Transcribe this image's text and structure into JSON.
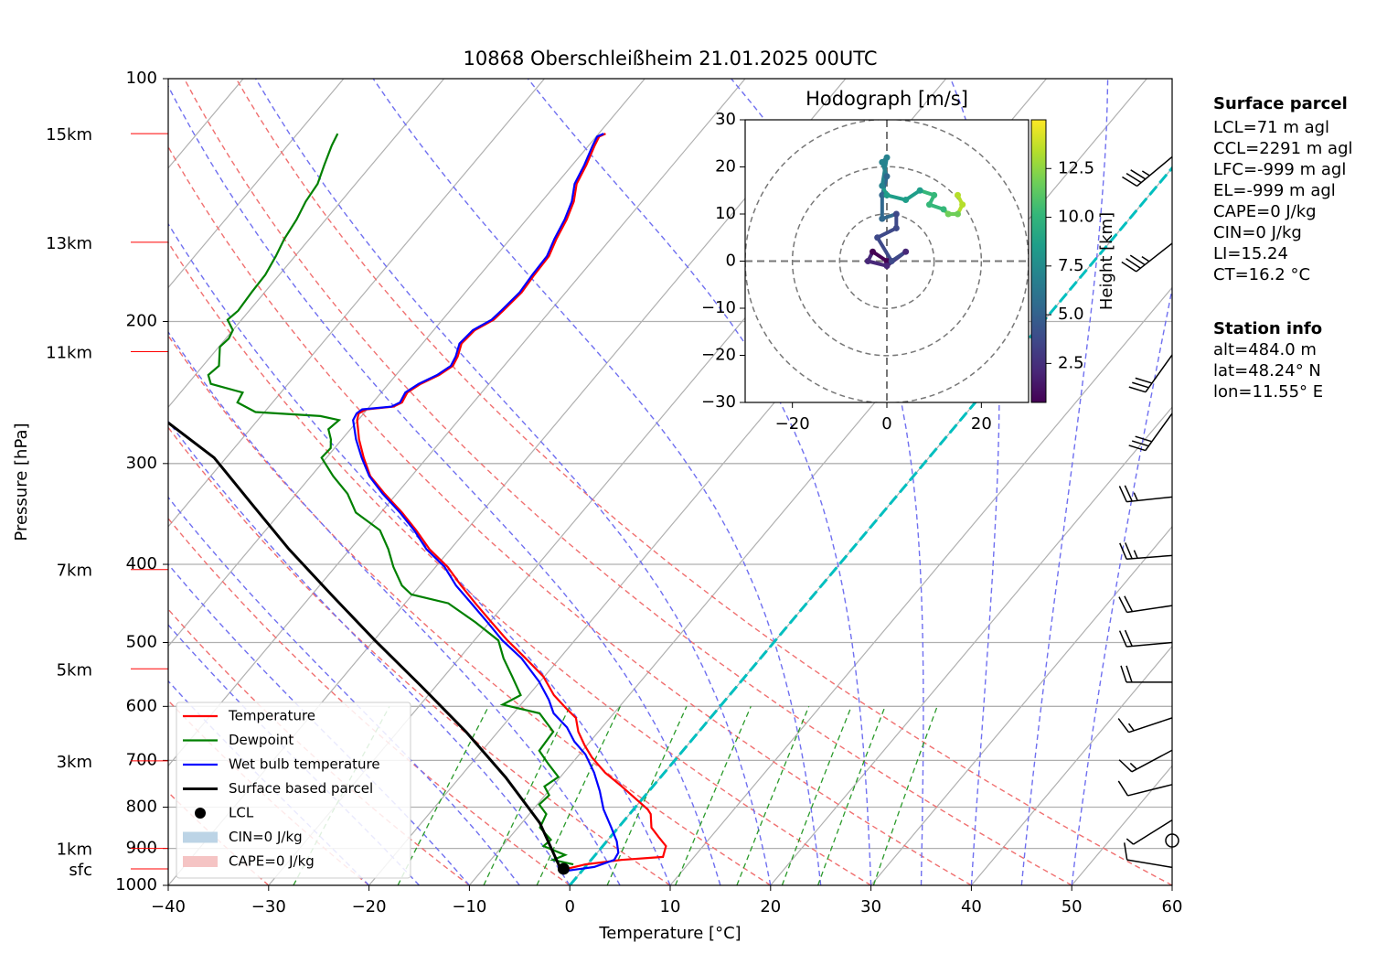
{
  "chart_data": [
    {
      "type": "skewt",
      "title": "10868 Oberschleißheim 21.01.2025 00UTC",
      "xlabel": "Temperature [°C]",
      "ylabel": "Pressure [hPa]",
      "xlim": [
        -40,
        60
      ],
      "xticks": [
        {
          "value": -40,
          "label": "−40"
        },
        {
          "value": -30,
          "label": "−30"
        },
        {
          "value": -20,
          "label": "−20"
        },
        {
          "value": -10,
          "label": "−10"
        },
        0,
        10,
        20,
        30,
        40,
        50,
        60
      ],
      "ylim": [
        1000,
        100
      ],
      "yticks": [
        100,
        200,
        300,
        400,
        500,
        600,
        700,
        800,
        900,
        1000
      ],
      "log_y": true,
      "grid": true,
      "series": [
        {
          "name": "Temperature",
          "color": "#ff0000",
          "pressure": [
            954,
            942,
            930,
            922,
            894,
            871,
            848,
            816,
            805,
            754,
            725,
            694,
            671,
            645,
            620,
            604,
            581,
            551,
            523,
            497,
            472,
            447,
            425,
            403,
            383,
            363,
            345,
            327,
            311,
            295,
            280,
            265,
            260,
            257,
            255,
            252,
            245,
            239,
            233,
            227,
            221,
            213,
            205,
            199,
            194,
            184,
            175,
            166,
            158,
            149.5,
            142,
            135,
            128,
            121,
            118,
            117
          ],
          "temperature": [
            -1.7,
            -0.2,
            3.0,
            6.9,
            6.3,
            4.8,
            3.3,
            2.1,
            1.4,
            -3.1,
            -5.9,
            -8.5,
            -10.2,
            -12.0,
            -13.4,
            -15.1,
            -17.5,
            -20.1,
            -23.4,
            -26.7,
            -29.8,
            -33.0,
            -35.9,
            -38.8,
            -42.1,
            -45.0,
            -47.9,
            -51.2,
            -54.1,
            -56.3,
            -58.3,
            -60.1,
            -60.5,
            -60.1,
            -57.6,
            -57.1,
            -57.4,
            -56.8,
            -55.7,
            -55.1,
            -55.4,
            -56.1,
            -55.9,
            -54.9,
            -54.7,
            -54.4,
            -54.6,
            -54.7,
            -55.4,
            -56.0,
            -56.8,
            -58.0,
            -58.6,
            -59.4,
            -59.7,
            -59.3
          ]
        },
        {
          "name": "Dewpoint",
          "color": "#008000",
          "pressure": [
            942,
            930,
            917,
            894,
            878,
            848,
            816,
            794,
            773,
            754,
            734,
            707,
            681,
            645,
            612,
            597,
            581,
            551,
            523,
            497,
            472,
            447,
            436,
            425,
            403,
            383,
            363,
            345,
            327,
            311,
            295,
            287,
            280,
            272,
            265,
            262,
            259,
            252,
            245,
            239,
            233,
            227,
            215,
            210,
            205,
            199,
            194,
            184,
            175,
            166,
            158,
            149.5,
            142,
            135,
            128,
            121,
            117
          ],
          "temperature": [
            -1.4,
            -3.8,
            -3.0,
            -5.9,
            -5.7,
            -7.8,
            -8.3,
            -9.8,
            -9.6,
            -10.8,
            -10.2,
            -12.3,
            -14.3,
            -14.5,
            -17.4,
            -21.8,
            -20.8,
            -23.2,
            -25.6,
            -27.6,
            -31.4,
            -35.7,
            -40.1,
            -41.8,
            -44.2,
            -46.2,
            -48.6,
            -52.5,
            -54.9,
            -57.8,
            -60.5,
            -60.4,
            -61.1,
            -62.2,
            -61.9,
            -64.1,
            -70.9,
            -73.5,
            -73.8,
            -77.7,
            -78.7,
            -78.4,
            -79.9,
            -79.7,
            -80.0,
            -81.4,
            -81.1,
            -81.3,
            -81.4,
            -81.9,
            -82.5,
            -82.9,
            -83.5,
            -83.8,
            -84.7,
            -85.6,
            -86.0
          ]
        },
        {
          "name": "Wet bulb temperature",
          "color": "#0000ff",
          "pressure": [
            959,
            949,
            930,
            911,
            882,
            848,
            805,
            764,
            725,
            688,
            663,
            637,
            612,
            589,
            559,
            523,
            497,
            472,
            447,
            425,
            403,
            383,
            363,
            345,
            327,
            311,
            295,
            280,
            265,
            260,
            257,
            255,
            252,
            245,
            239,
            233,
            227,
            221,
            213,
            205,
            199,
            194,
            184,
            175,
            166,
            158,
            149.5,
            142,
            135,
            128,
            121,
            118,
            117
          ],
          "temperature": [
            -1.5,
            0.9,
            2.3,
            2.1,
            1.0,
            -0.7,
            -3.0,
            -4.9,
            -7.0,
            -9.4,
            -11.6,
            -13.5,
            -16.0,
            -17.6,
            -20.1,
            -23.8,
            -27.2,
            -30.2,
            -33.4,
            -36.4,
            -39.1,
            -42.4,
            -45.2,
            -48.1,
            -51.4,
            -54.2,
            -56.5,
            -58.6,
            -60.5,
            -60.7,
            -60.5,
            -57.8,
            -57.3,
            -57.6,
            -57.0,
            -55.9,
            -55.3,
            -55.6,
            -56.3,
            -56.1,
            -55.1,
            -54.9,
            -54.6,
            -54.8,
            -54.9,
            -55.6,
            -56.2,
            -57.0,
            -58.2,
            -58.8,
            -59.6,
            -59.9,
            -59.5
          ]
        },
        {
          "name": "Surface based parcel",
          "color": "#000000",
          "pressure": [
            954,
            837,
            735,
            645,
            566,
            497,
            436,
            383,
            336,
            295,
            267
          ],
          "temperature": [
            -2.3,
            -8.2,
            -15.4,
            -23.2,
            -31.5,
            -39.9,
            -48.1,
            -56.1,
            -63.7,
            -71.2,
            -78.7
          ]
        }
      ],
      "lcl": {
        "name": "LCL",
        "pressure": 954,
        "temperature": -2.0,
        "color": "#000000"
      },
      "shading": [
        {
          "name": "CIN=0 J/kg",
          "color": "#bcd4e6"
        },
        {
          "name": "CAPE=0 J/kg",
          "color": "#f5c4c4"
        }
      ],
      "height_labels": [
        {
          "label": "15km",
          "pressure": 117
        },
        {
          "label": "13km",
          "pressure": 159.5
        },
        {
          "label": "11km",
          "pressure": 218
        },
        {
          "label": "7km",
          "pressure": 406
        },
        {
          "label": "5km",
          "pressure": 539
        },
        {
          "label": "3km",
          "pressure": 701
        },
        {
          "label": "1km",
          "pressure": 900
        },
        {
          "label": "sfc",
          "pressure": 954
        }
      ],
      "wind": {
        "pressure": [
          125,
          160,
          220,
          260,
          330,
          390,
          450,
          500,
          560,
          620,
          680,
          750,
          830,
          880,
          950
        ],
        "u": [
          30,
          28,
          20,
          18,
          28,
          25,
          20,
          22,
          20,
          15,
          15,
          12,
          8,
          0,
          12
        ],
        "v": [
          25,
          22,
          28,
          25,
          3,
          2,
          3,
          2,
          0,
          5,
          8,
          3,
          5,
          0,
          -2
        ]
      }
    },
    {
      "type": "hodograph",
      "title": "Hodograph [m/s]",
      "xlim": [
        -30,
        30
      ],
      "ylim": [
        -30,
        30
      ],
      "xticks": [
        {
          "value": -20,
          "label": "−20"
        },
        0,
        20
      ],
      "yticks": [
        {
          "value": -30,
          "label": "−30"
        },
        {
          "value": -20,
          "label": "−20"
        },
        {
          "value": -10,
          "label": "−10"
        },
        0,
        10,
        20,
        30
      ],
      "u": [
        0,
        -3,
        -4,
        0,
        4,
        1,
        -2,
        2,
        2,
        -1,
        -1,
        0,
        -1,
        0,
        -1,
        0,
        4,
        7,
        10,
        9,
        12,
        13,
        15,
        16,
        15
      ],
      "v": [
        0,
        2,
        0,
        -1,
        2,
        0,
        5,
        7,
        10,
        9,
        14,
        18,
        21,
        22,
        16,
        14,
        13,
        15,
        14,
        12,
        11,
        10,
        10,
        12,
        14
      ],
      "height": [
        0.5,
        1,
        1.5,
        2,
        2.5,
        3,
        3.5,
        4,
        4.5,
        5,
        5.5,
        6,
        6.5,
        7,
        7.5,
        8,
        8.5,
        9,
        9.5,
        10,
        10.5,
        11,
        12,
        13,
        14
      ],
      "colorbar": {
        "label": "Height [km]",
        "lim": [
          0.5,
          15
        ],
        "ticks": [
          2.5,
          {
            "value": 5,
            "label": "5.0"
          },
          7.5,
          {
            "value": 10,
            "label": "10.0"
          },
          12.5
        ]
      }
    }
  ],
  "info_panel": {
    "surface_title": "Surface parcel",
    "surface_lines": [
      "LCL=71 m agl",
      "CCL=2291 m agl",
      "LFC=-999 m agl",
      "EL=-999 m agl",
      "CAPE=0 J/kg",
      "CIN=0 J/kg",
      "LI=15.24",
      "CT=16.2 °C"
    ],
    "station_title": "Station info",
    "station_lines": [
      "alt=484.0 m",
      "lat=48.24° N",
      "lon=11.55° E"
    ]
  }
}
